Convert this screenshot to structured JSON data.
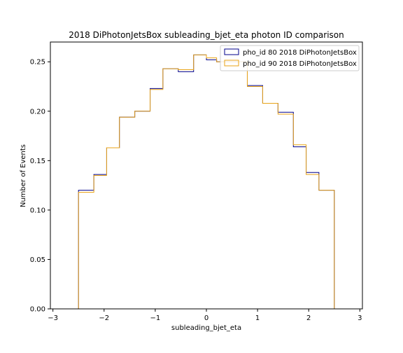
{
  "chart_data": {
    "type": "step",
    "title": "2018 DiPhotonJetsBox subleading_bjet_eta photon ID comparison",
    "xlabel": "subleading_bjet_eta",
    "ylabel": "Number of Events",
    "xlim": [
      -3.05,
      3.05
    ],
    "ylim": [
      0.0,
      0.27
    ],
    "x_ticks": [
      -3,
      -2,
      -1,
      0,
      1,
      2,
      3
    ],
    "y_ticks": [
      0.0,
      0.05,
      0.1,
      0.15,
      0.2,
      0.25
    ],
    "grid": false,
    "legend_position": "top-right",
    "bin_edges": [
      -2.5,
      -2.2,
      -1.95,
      -1.7,
      -1.4,
      -1.1,
      -0.85,
      -0.55,
      -0.25,
      0.0,
      0.2,
      0.5,
      0.8,
      1.1,
      1.4,
      1.7,
      1.95,
      2.2,
      2.5
    ],
    "series": [
      {
        "name": "pho_id 80 2018 DiPhotonJetsBox",
        "color": "#00008b",
        "values": [
          0.12,
          0.136,
          0.163,
          0.194,
          0.2,
          0.223,
          0.243,
          0.24,
          0.257,
          0.252,
          0.25,
          0.25,
          0.226,
          0.208,
          0.199,
          0.164,
          0.138,
          0.12
        ]
      },
      {
        "name": "pho_id 90 2018 DiPhotonJetsBox",
        "color": "#e8a317",
        "values": [
          0.118,
          0.135,
          0.163,
          0.194,
          0.2,
          0.222,
          0.243,
          0.242,
          0.257,
          0.254,
          0.25,
          0.25,
          0.225,
          0.208,
          0.197,
          0.166,
          0.136,
          0.12
        ]
      }
    ]
  }
}
